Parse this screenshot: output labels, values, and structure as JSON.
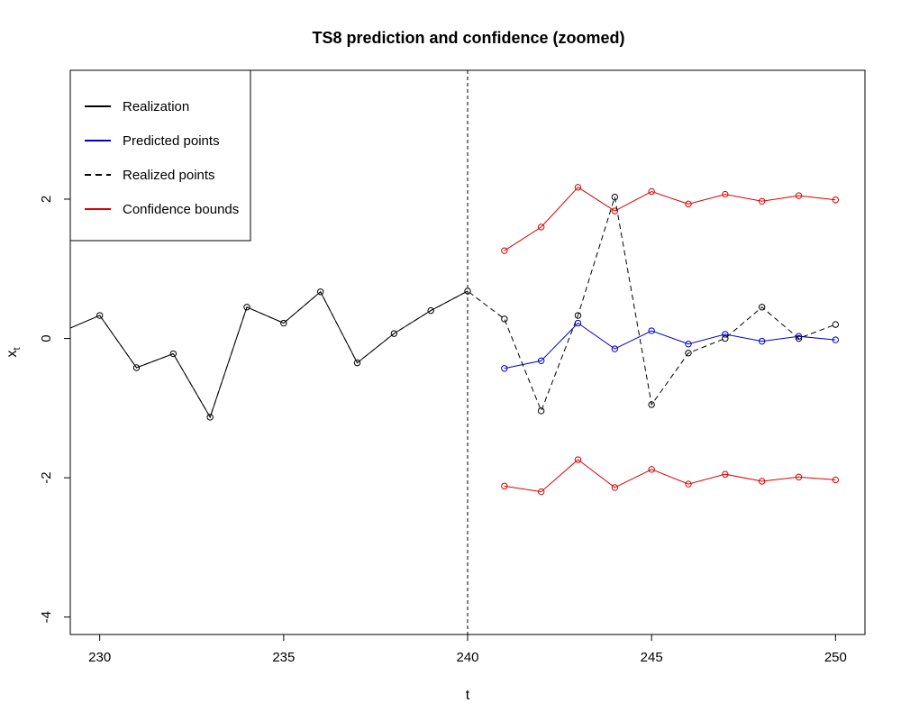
{
  "chart_data": {
    "type": "line",
    "title": "TS8 prediction and confidence (zoomed)",
    "xlabel": "t",
    "ylabel": "x",
    "ylabel_subscript": "t",
    "xlim": [
      229.2,
      250.8
    ],
    "ylim": [
      -4.25,
      3.85
    ],
    "x_ticks": [
      230,
      235,
      240,
      245,
      250
    ],
    "y_ticks": [
      -4,
      -2,
      0,
      2
    ],
    "grid": false,
    "legend_position": "top-left",
    "vline": {
      "x": 240,
      "style": "dashed",
      "color": "#000000"
    },
    "series": [
      {
        "name": "Realization",
        "color": "#000000",
        "dash": "solid",
        "markers": false,
        "x": [
          229.2,
          230,
          231,
          232,
          233,
          234,
          235,
          236,
          237,
          238,
          239,
          240
        ],
        "y": [
          0.15,
          0.33,
          -0.42,
          -0.22,
          -1.13,
          0.45,
          0.22,
          0.67,
          -0.35,
          0.07,
          0.4,
          0.68
        ]
      },
      {
        "name": "Predicted points",
        "color": "#0000CD",
        "dash": "solid",
        "markers": true,
        "x": [
          241,
          242,
          243,
          244,
          245,
          246,
          247,
          248,
          249,
          250
        ],
        "y": [
          -0.43,
          -0.32,
          0.22,
          -0.15,
          0.11,
          -0.08,
          0.06,
          -0.04,
          0.03,
          -0.02
        ]
      },
      {
        "name": "Realized points",
        "color": "#000000",
        "dash": "dashed",
        "markers": true,
        "x": [
          230,
          231,
          232,
          233,
          234,
          235,
          236,
          237,
          238,
          239,
          240,
          241,
          242,
          243,
          244,
          245,
          246,
          247,
          248,
          249,
          250
        ],
        "y": [
          0.33,
          -0.42,
          -0.22,
          -1.13,
          0.45,
          0.22,
          0.67,
          -0.35,
          0.07,
          0.4,
          0.68,
          0.28,
          -1.04,
          0.33,
          2.03,
          -0.95,
          -0.21,
          0.0,
          0.45,
          0.0,
          0.2
        ]
      },
      {
        "name": "Confidence bounds",
        "color": "#DD0000",
        "dash": "solid",
        "markers": true,
        "x": [
          241,
          242,
          243,
          244,
          245,
          246,
          247,
          248,
          249,
          250
        ],
        "y": [
          1.26,
          1.6,
          2.17,
          1.83,
          2.11,
          1.93,
          2.07,
          1.97,
          2.05,
          1.99
        ]
      },
      {
        "name": "",
        "color": "#DD0000",
        "dash": "solid",
        "markers": true,
        "x": [
          241,
          242,
          243,
          244,
          245,
          246,
          247,
          248,
          249,
          250
        ],
        "y": [
          -2.12,
          -2.2,
          -1.74,
          -2.14,
          -1.88,
          -2.09,
          -1.95,
          -2.05,
          -1.99,
          -2.03
        ]
      }
    ]
  }
}
